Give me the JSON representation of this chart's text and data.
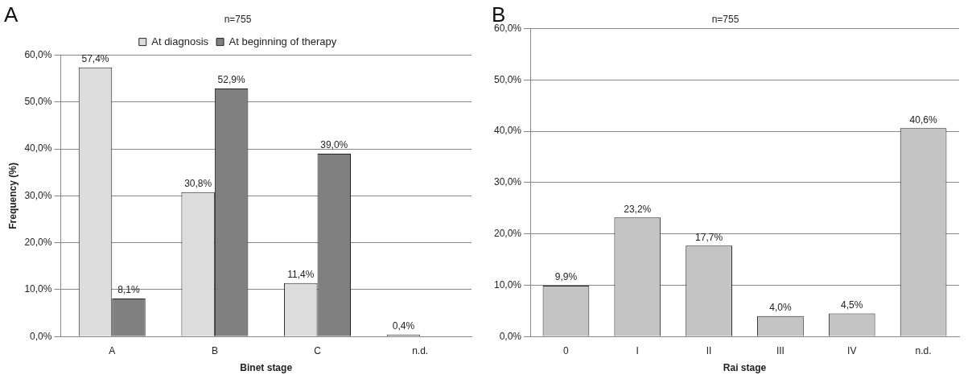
{
  "chart_data": [
    {
      "type": "bar",
      "title": "A",
      "subtitle": "n=755",
      "xlabel": "Binet stage",
      "ylabel": "Frequency (%)",
      "categories": [
        "A",
        "B",
        "C",
        "n.d."
      ],
      "series": [
        {
          "name": "At diagnosis",
          "color": "#dcdcdc",
          "values": [
            57.4,
            30.8,
            11.4,
            0.4
          ],
          "value_labels": [
            "57,4%",
            "30,8%",
            "11,4%",
            "0,4%"
          ]
        },
        {
          "name": "At beginning of therapy",
          "color": "#808080",
          "values": [
            8.1,
            52.9,
            39.0,
            null
          ],
          "value_labels": [
            "8,1%",
            "52,9%",
            "39,0%",
            null
          ]
        }
      ],
      "ylim": [
        0,
        60
      ],
      "yticks": [
        {
          "value": 0,
          "label": "0,0%"
        },
        {
          "value": 10,
          "label": "10,0%"
        },
        {
          "value": 20,
          "label": "20,0%"
        },
        {
          "value": 30,
          "label": "30,0%"
        },
        {
          "value": 40,
          "label": "40,0%"
        },
        {
          "value": 50,
          "label": "50,0%"
        },
        {
          "value": 60,
          "label": "60,0%"
        }
      ],
      "grid": "y",
      "legend": "top"
    },
    {
      "type": "bar",
      "title": "B",
      "subtitle": "n=755",
      "xlabel": "Rai stage",
      "categories": [
        "0",
        "I",
        "II",
        "III",
        "IV",
        "n.d."
      ],
      "series": [
        {
          "color": "#c4c4c4",
          "values": [
            9.9,
            23.2,
            17.7,
            4.0,
            4.5,
            40.6
          ],
          "value_labels": [
            "9,9%",
            "23,2%",
            "17,7%",
            "4,0%",
            "4,5%",
            "40,6%"
          ]
        }
      ],
      "ylim": [
        0,
        60
      ],
      "yticks": [
        {
          "value": 0,
          "label": "0,0%"
        },
        {
          "value": 10,
          "label": "10,0%"
        },
        {
          "value": 20,
          "label": "20,0%"
        },
        {
          "value": 30,
          "label": "30,0%"
        },
        {
          "value": 40,
          "label": "40,0%"
        },
        {
          "value": 50,
          "label": "50,0%"
        },
        {
          "value": 60,
          "label": "60,0%"
        }
      ],
      "grid": "y"
    }
  ]
}
